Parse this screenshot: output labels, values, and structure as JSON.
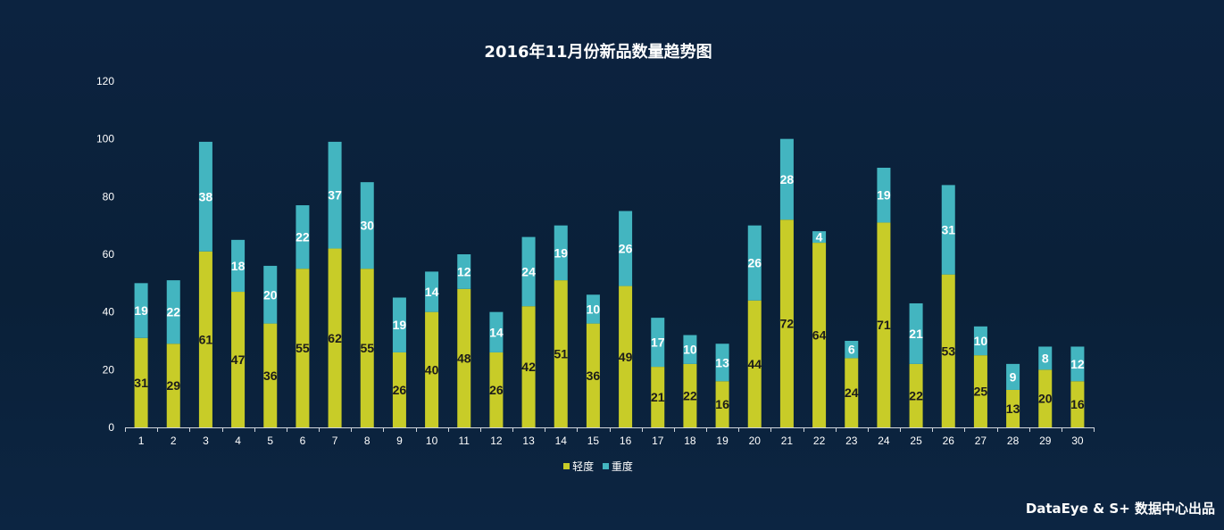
{
  "chart_data": {
    "type": "bar",
    "stacked": true,
    "title": "2016年11月份新品数量趋势图",
    "xlabel": "",
    "ylabel": "",
    "ylim": [
      0,
      120
    ],
    "yticks": [
      0,
      20,
      40,
      60,
      80,
      100,
      120
    ],
    "categories": [
      "1",
      "2",
      "3",
      "4",
      "5",
      "6",
      "7",
      "8",
      "9",
      "10",
      "11",
      "12",
      "13",
      "14",
      "15",
      "16",
      "17",
      "18",
      "19",
      "20",
      "21",
      "22",
      "23",
      "24",
      "25",
      "26",
      "27",
      "28",
      "29",
      "30"
    ],
    "series": [
      {
        "name": "轻度",
        "color": "#c8cc28",
        "label_color": "#1b1b1b",
        "values": [
          31,
          29,
          61,
          47,
          36,
          55,
          62,
          55,
          26,
          40,
          48,
          26,
          42,
          51,
          36,
          49,
          21,
          22,
          16,
          44,
          72,
          64,
          24,
          71,
          22,
          53,
          25,
          13,
          20,
          16
        ]
      },
      {
        "name": "重度",
        "color": "#43b5c0",
        "label_color": "#ffffff",
        "values": [
          19,
          22,
          38,
          18,
          20,
          22,
          37,
          30,
          19,
          14,
          12,
          14,
          24,
          19,
          10,
          26,
          17,
          10,
          13,
          26,
          28,
          4,
          6,
          19,
          21,
          31,
          10,
          9,
          8,
          12
        ]
      }
    ],
    "legend_position": "bottom",
    "grid": false
  },
  "footer": {
    "credit": "DataEye & S+ 数据中心出品"
  }
}
